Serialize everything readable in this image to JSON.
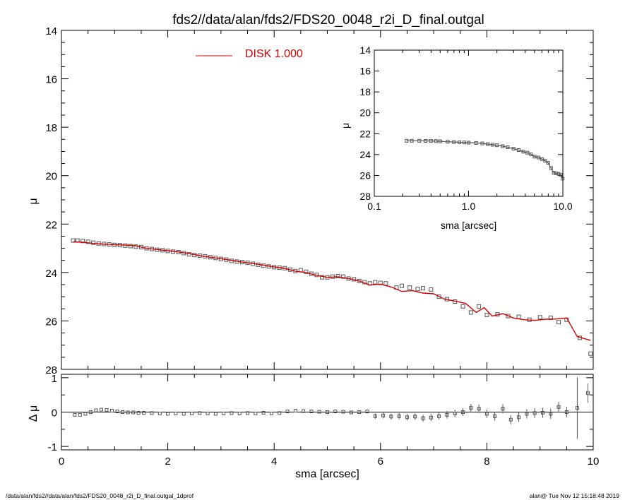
{
  "title": "fds2//data/alan/fds2/FDS20_0048_r2i_D_final.outgal",
  "footer": {
    "left": "/data/alan/fds2//data/alan/fds2/FDS20_0048_r2i_D_final.outgal_1dprof",
    "right": "alan@  Tue Nov 12 15:18:48 2019"
  },
  "colors": {
    "model": "#d40000",
    "data": "#555555",
    "axes": "#000000"
  },
  "chart_data": [
    {
      "id": "main",
      "type": "scatter",
      "xlabel": "sma [arcsec]",
      "ylabel": "μ",
      "xlim": [
        0,
        10
      ],
      "ylim": [
        28,
        14
      ],
      "xticks": [
        "0",
        "2",
        "4",
        "6",
        "8",
        "10"
      ],
      "yticks": [
        "14",
        "16",
        "18",
        "20",
        "22",
        "24",
        "26",
        "28"
      ],
      "legend": {
        "label": "DISK  1.000",
        "position": "top-left"
      },
      "series": [
        {
          "name": "",
          "marker": "square",
          "points": [
            [
              0.22,
              22.68
            ],
            [
              0.3,
              22.68
            ],
            [
              0.4,
              22.7
            ],
            [
              0.5,
              22.73
            ],
            [
              0.6,
              22.77
            ],
            [
              0.7,
              22.8
            ],
            [
              0.8,
              22.82
            ],
            [
              0.9,
              22.84
            ],
            [
              1.0,
              22.86
            ],
            [
              1.1,
              22.87
            ],
            [
              1.2,
              22.89
            ],
            [
              1.3,
              22.91
            ],
            [
              1.4,
              22.93
            ],
            [
              1.5,
              22.95
            ],
            [
              1.6,
              23.0
            ],
            [
              1.7,
              23.03
            ],
            [
              1.8,
              23.06
            ],
            [
              1.9,
              23.08
            ],
            [
              2.0,
              23.11
            ],
            [
              2.1,
              23.14
            ],
            [
              2.2,
              23.16
            ],
            [
              2.3,
              23.2
            ],
            [
              2.4,
              23.25
            ],
            [
              2.5,
              23.28
            ],
            [
              2.6,
              23.3
            ],
            [
              2.7,
              23.33
            ],
            [
              2.8,
              23.37
            ],
            [
              2.9,
              23.4
            ],
            [
              3.0,
              23.44
            ],
            [
              3.1,
              23.47
            ],
            [
              3.2,
              23.52
            ],
            [
              3.3,
              23.55
            ],
            [
              3.4,
              23.57
            ],
            [
              3.5,
              23.6
            ],
            [
              3.6,
              23.64
            ],
            [
              3.7,
              23.68
            ],
            [
              3.8,
              23.72
            ],
            [
              3.9,
              23.75
            ],
            [
              4.0,
              23.78
            ],
            [
              4.1,
              23.8
            ],
            [
              4.2,
              23.82
            ],
            [
              4.3,
              23.88
            ],
            [
              4.4,
              23.94
            ],
            [
              4.5,
              23.9
            ],
            [
              4.6,
              23.97
            ],
            [
              4.7,
              24.05
            ],
            [
              4.8,
              24.1
            ],
            [
              4.9,
              24.2
            ],
            [
              5.0,
              24.2
            ],
            [
              5.1,
              24.17
            ],
            [
              5.2,
              24.15
            ],
            [
              5.3,
              24.17
            ],
            [
              5.4,
              24.25
            ],
            [
              5.5,
              24.28
            ],
            [
              5.6,
              24.35
            ],
            [
              5.7,
              24.4
            ],
            [
              5.8,
              24.45
            ],
            [
              5.9,
              24.4
            ],
            [
              6.0,
              24.43
            ],
            [
              6.1,
              24.45
            ],
            [
              6.3,
              24.62
            ],
            [
              6.4,
              24.55
            ],
            [
              6.55,
              24.62
            ],
            [
              6.7,
              24.68
            ],
            [
              6.8,
              24.65
            ],
            [
              6.95,
              24.7
            ],
            [
              7.1,
              25.0
            ],
            [
              7.25,
              25.1
            ],
            [
              7.4,
              25.2
            ],
            [
              7.55,
              25.4
            ],
            [
              7.7,
              25.65
            ],
            [
              7.85,
              25.4
            ],
            [
              8.0,
              25.75
            ],
            [
              8.2,
              25.73
            ],
            [
              8.4,
              25.8
            ],
            [
              8.6,
              25.83
            ],
            [
              8.8,
              25.95
            ],
            [
              9.0,
              25.85
            ],
            [
              9.2,
              25.87
            ],
            [
              9.35,
              26.05
            ],
            [
              9.5,
              25.95
            ],
            [
              9.75,
              26.7
            ],
            [
              9.95,
              27.35
            ]
          ]
        },
        {
          "name": "DISK  1.000",
          "line": true,
          "points": [
            [
              0.22,
              22.73
            ],
            [
              0.4,
              22.75
            ],
            [
              0.6,
              22.8
            ],
            [
              0.8,
              22.83
            ],
            [
              1.0,
              22.85
            ],
            [
              1.2,
              22.87
            ],
            [
              1.4,
              22.9
            ],
            [
              1.6,
              23.0
            ],
            [
              1.8,
              23.05
            ],
            [
              2.0,
              23.1
            ],
            [
              2.2,
              23.15
            ],
            [
              2.4,
              23.22
            ],
            [
              2.6,
              23.3
            ],
            [
              2.8,
              23.37
            ],
            [
              3.0,
              23.43
            ],
            [
              3.2,
              23.5
            ],
            [
              3.4,
              23.57
            ],
            [
              3.6,
              23.63
            ],
            [
              3.8,
              23.7
            ],
            [
              4.0,
              23.77
            ],
            [
              4.2,
              23.83
            ],
            [
              4.4,
              23.95
            ],
            [
              4.6,
              24.0
            ],
            [
              4.8,
              24.12
            ],
            [
              5.0,
              24.2
            ],
            [
              5.2,
              24.18
            ],
            [
              5.4,
              24.25
            ],
            [
              5.6,
              24.35
            ],
            [
              5.8,
              24.52
            ],
            [
              6.0,
              24.48
            ],
            [
              6.2,
              24.6
            ],
            [
              6.4,
              24.78
            ],
            [
              6.6,
              24.75
            ],
            [
              6.8,
              24.85
            ],
            [
              7.0,
              24.88
            ],
            [
              7.2,
              25.1
            ],
            [
              7.4,
              25.18
            ],
            [
              7.6,
              25.28
            ],
            [
              7.8,
              25.65
            ],
            [
              7.95,
              25.45
            ],
            [
              8.1,
              25.8
            ],
            [
              8.3,
              25.7
            ],
            [
              8.5,
              25.88
            ],
            [
              8.7,
              25.95
            ],
            [
              8.9,
              25.98
            ],
            [
              9.1,
              25.93
            ],
            [
              9.3,
              25.92
            ],
            [
              9.5,
              25.88
            ],
            [
              9.7,
              26.65
            ],
            [
              9.95,
              26.8
            ]
          ]
        }
      ]
    },
    {
      "id": "residual",
      "type": "scatter",
      "xlabel": "sma [arcsec]",
      "ylabel": "Δ μ",
      "xlim": [
        0,
        10
      ],
      "ylim": [
        -1.1,
        1.1
      ],
      "yticks": [
        "-1",
        "0",
        "1"
      ],
      "series": [
        {
          "name": "",
          "marker": "square",
          "points": [
            [
              0.25,
              -0.08
            ],
            [
              0.35,
              -0.08
            ],
            [
              0.45,
              -0.05
            ],
            [
              0.55,
              0.0
            ],
            [
              0.65,
              0.05
            ],
            [
              0.75,
              0.07
            ],
            [
              0.85,
              0.06
            ],
            [
              0.95,
              0.04
            ],
            [
              1.05,
              0.02
            ],
            [
              1.15,
              0.0
            ],
            [
              1.25,
              -0.01
            ],
            [
              1.35,
              -0.01
            ],
            [
              1.45,
              -0.02
            ],
            [
              1.55,
              -0.02
            ],
            [
              1.7,
              -0.03
            ],
            [
              1.85,
              -0.04
            ],
            [
              2.0,
              -0.05
            ],
            [
              2.15,
              -0.04
            ],
            [
              2.3,
              -0.05
            ],
            [
              2.45,
              -0.04
            ],
            [
              2.6,
              -0.03
            ],
            [
              2.75,
              -0.04
            ],
            [
              2.9,
              -0.05
            ],
            [
              3.05,
              -0.04
            ],
            [
              3.2,
              -0.03
            ],
            [
              3.35,
              -0.04
            ],
            [
              3.5,
              -0.03
            ],
            [
              3.65,
              -0.04
            ],
            [
              3.8,
              -0.02
            ],
            [
              3.95,
              -0.04
            ],
            [
              4.1,
              -0.03
            ],
            [
              4.25,
              0.02
            ],
            [
              4.4,
              0.04
            ],
            [
              4.55,
              0.03
            ],
            [
              4.7,
              0.02
            ],
            [
              4.85,
              0.01
            ],
            [
              5.0,
              0.0
            ],
            [
              5.15,
              0.02
            ],
            [
              5.3,
              0.01
            ],
            [
              5.45,
              -0.01
            ],
            [
              5.6,
              0.0
            ],
            [
              5.75,
              0.02
            ],
            [
              5.9,
              -0.12
            ],
            [
              6.05,
              -0.1
            ],
            [
              6.2,
              -0.13
            ],
            [
              6.35,
              -0.12
            ],
            [
              6.5,
              -0.15
            ],
            [
              6.65,
              -0.13
            ],
            [
              6.8,
              -0.18
            ],
            [
              6.95,
              -0.16
            ],
            [
              7.1,
              -0.12
            ],
            [
              7.25,
              -0.08
            ],
            [
              7.4,
              -0.04
            ],
            [
              7.55,
              0.0
            ],
            [
              7.7,
              0.12
            ],
            [
              7.85,
              0.1
            ],
            [
              8.0,
              -0.05
            ],
            [
              8.15,
              -0.12
            ],
            [
              8.3,
              0.1
            ],
            [
              8.45,
              -0.22
            ],
            [
              8.6,
              -0.15
            ],
            [
              8.75,
              -0.05
            ],
            [
              8.9,
              -0.03
            ],
            [
              9.05,
              -0.02
            ],
            [
              9.2,
              -0.05
            ],
            [
              9.35,
              0.15
            ],
            [
              9.5,
              0.0
            ],
            [
              9.7,
              0.12
            ],
            [
              9.9,
              0.55
            ]
          ]
        }
      ]
    },
    {
      "id": "inset",
      "type": "scatter",
      "xlabel": "sma [arcsec]",
      "ylabel": "μ",
      "xscale": "log",
      "xlim": [
        0.1,
        10.0
      ],
      "ylim": [
        28,
        14
      ],
      "xticks": [
        "0.1",
        "1.0",
        "10.0"
      ],
      "yticks": [
        "14",
        "16",
        "18",
        "20",
        "22",
        "24",
        "26",
        "28"
      ],
      "series": [
        {
          "name": "",
          "marker": "square",
          "points": [
            [
              0.22,
              22.68
            ],
            [
              0.25,
              22.68
            ],
            [
              0.3,
              22.68
            ],
            [
              0.35,
              22.69
            ],
            [
              0.4,
              22.7
            ],
            [
              0.45,
              22.71
            ],
            [
              0.5,
              22.73
            ],
            [
              0.6,
              22.77
            ],
            [
              0.7,
              22.8
            ],
            [
              0.8,
              22.82
            ],
            [
              0.9,
              22.84
            ],
            [
              1.0,
              22.86
            ],
            [
              1.2,
              22.89
            ],
            [
              1.4,
              22.93
            ],
            [
              1.6,
              23.0
            ],
            [
              1.8,
              23.06
            ],
            [
              2.0,
              23.11
            ],
            [
              2.3,
              23.2
            ],
            [
              2.6,
              23.3
            ],
            [
              3.0,
              23.44
            ],
            [
              3.4,
              23.57
            ],
            [
              3.8,
              23.72
            ],
            [
              4.2,
              23.82
            ],
            [
              4.6,
              23.97
            ],
            [
              5.0,
              24.2
            ],
            [
              5.5,
              24.28
            ],
            [
              6.0,
              24.43
            ],
            [
              6.5,
              24.6
            ],
            [
              7.0,
              24.8
            ],
            [
              7.5,
              25.3
            ],
            [
              8.0,
              25.75
            ],
            [
              8.5,
              25.8
            ],
            [
              9.0,
              25.85
            ],
            [
              9.5,
              25.95
            ],
            [
              9.95,
              26.3
            ]
          ]
        }
      ]
    }
  ]
}
